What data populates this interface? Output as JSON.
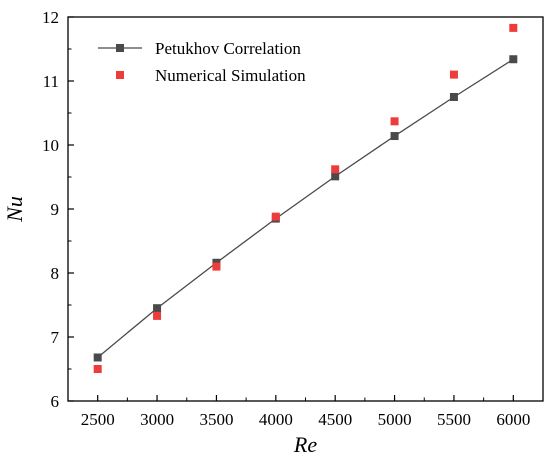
{
  "chart_data": {
    "type": "line",
    "xlabel": "Re",
    "ylabel": "Nu",
    "xlim": [
      2250,
      6250
    ],
    "ylim": [
      6,
      12
    ],
    "xticks": [
      2500,
      3000,
      3500,
      4000,
      4500,
      5000,
      5500,
      6000
    ],
    "yticks": [
      6,
      7,
      8,
      9,
      10,
      11,
      12
    ],
    "grid": false,
    "legend_position": "top-left",
    "series": [
      {
        "name": "Petukhov Correlation",
        "kind": "line-with-square-markers",
        "color": "#4a4a4a",
        "x": [
          2500,
          3000,
          3500,
          4000,
          4500,
          5000,
          5500,
          6000
        ],
        "y": [
          6.68,
          7.45,
          8.16,
          8.85,
          9.51,
          10.14,
          10.75,
          11.34
        ]
      },
      {
        "name": "Numerical Simulation",
        "kind": "square-markers",
        "color": "#ee3b3b",
        "x": [
          2500,
          3000,
          3500,
          4000,
          4500,
          5000,
          5500,
          6000
        ],
        "y": [
          6.5,
          7.33,
          8.1,
          8.88,
          9.62,
          10.37,
          11.1,
          11.83
        ]
      }
    ]
  }
}
